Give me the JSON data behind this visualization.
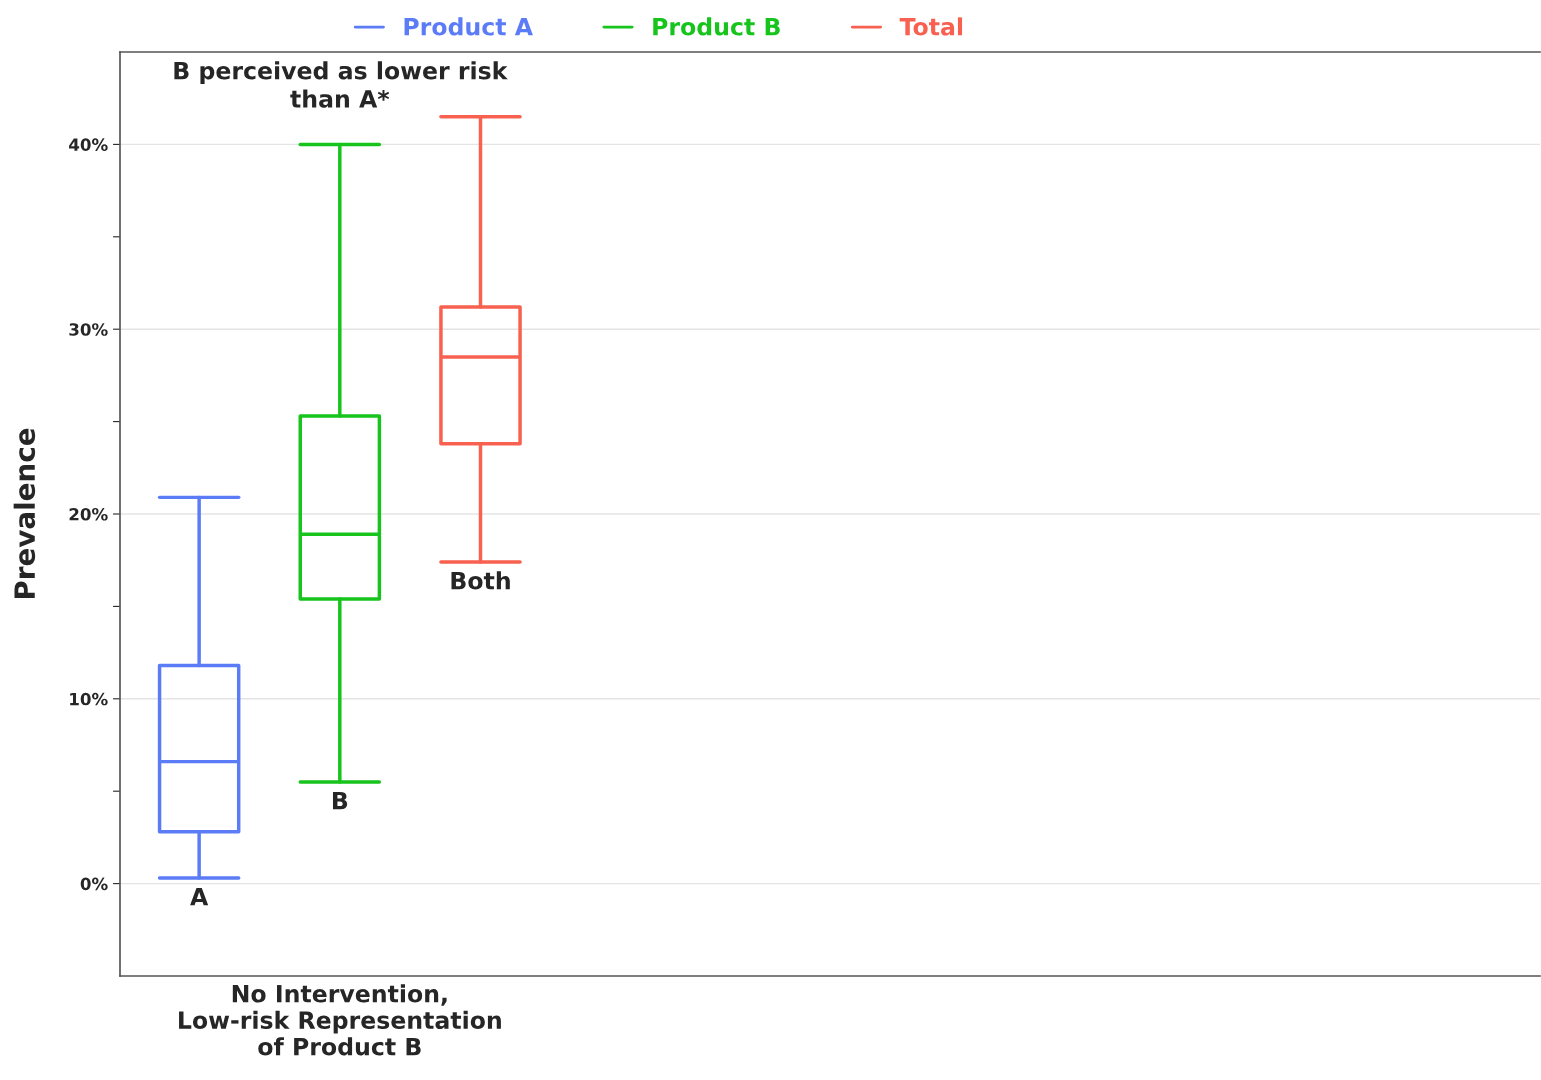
{
  "chart_data": {
    "type": "box",
    "ylabel": "Prevalence",
    "categories": [
      "No Intervention,\nLow-risk Representation\nof Product B"
    ],
    "series": [
      {
        "name": "Product A",
        "color": "#5b7cf6",
        "boxes": [
          {
            "low": 0.3,
            "q1": 2.8,
            "median": 6.6,
            "q3": 11.8,
            "high": 20.9
          }
        ]
      },
      {
        "name": "Product B",
        "color": "#17c41c",
        "boxes": [
          {
            "low": 5.5,
            "q1": 15.4,
            "median": 18.9,
            "q3": 25.3,
            "high": 40.0
          }
        ]
      },
      {
        "name": "Total",
        "color": "#f8614f",
        "boxes": [
          {
            "low": 17.4,
            "q1": 23.8,
            "median": 28.5,
            "q3": 31.2,
            "high": 41.5
          }
        ]
      }
    ],
    "annotations": [
      "A",
      "B",
      "Both",
      "B perceived as lower risk\nthan A*"
    ],
    "ylim": [
      -5,
      45
    ],
    "yticks": [
      {
        "value": 0,
        "label": "0%"
      },
      {
        "value": 5,
        "label": null
      },
      {
        "value": 10,
        "label": "10%"
      },
      {
        "value": 15,
        "label": null
      },
      {
        "value": 20,
        "label": "20%"
      },
      {
        "value": 25,
        "label": null
      },
      {
        "value": 30,
        "label": "30%"
      },
      {
        "value": 35,
        "label": null
      },
      {
        "value": 40,
        "label": "40%"
      }
    ],
    "grid": "y",
    "legend": "top"
  }
}
